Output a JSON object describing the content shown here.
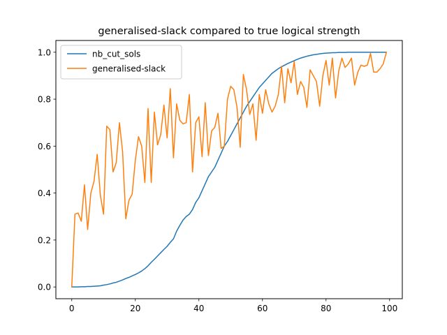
{
  "chart_data": {
    "type": "line",
    "title": "generalised-slack compared to true logical strength",
    "xlabel": "",
    "ylabel": "",
    "xlim": [
      -5,
      104
    ],
    "ylim": [
      -0.05,
      1.05
    ],
    "x_ticks": [
      "0",
      "20",
      "40",
      "60",
      "80",
      "100"
    ],
    "y_ticks": [
      "0.0",
      "0.2",
      "0.4",
      "0.6",
      "0.8",
      "1.0"
    ],
    "grid": false,
    "legend_position": "upper left",
    "x": [
      0,
      1,
      2,
      3,
      4,
      5,
      6,
      7,
      8,
      9,
      10,
      11,
      12,
      13,
      14,
      15,
      16,
      17,
      18,
      19,
      20,
      21,
      22,
      23,
      24,
      25,
      26,
      27,
      28,
      29,
      30,
      31,
      32,
      33,
      34,
      35,
      36,
      37,
      38,
      39,
      40,
      41,
      42,
      43,
      44,
      45,
      46,
      47,
      48,
      49,
      50,
      51,
      52,
      53,
      54,
      55,
      56,
      57,
      58,
      59,
      60,
      61,
      62,
      63,
      64,
      65,
      66,
      67,
      68,
      69,
      70,
      71,
      72,
      73,
      74,
      75,
      76,
      77,
      78,
      79,
      80,
      81,
      82,
      83,
      84,
      85,
      86,
      87,
      88,
      89,
      90,
      91,
      92,
      93,
      94,
      95,
      96,
      97,
      98,
      99
    ],
    "series": [
      {
        "name": "nb_cut_sols",
        "color": "#1f77b4",
        "values": [
          0.0,
          0.0,
          0.0,
          0.001,
          0.001,
          0.002,
          0.002,
          0.003,
          0.004,
          0.005,
          0.008,
          0.01,
          0.013,
          0.017,
          0.02,
          0.025,
          0.03,
          0.036,
          0.041,
          0.047,
          0.053,
          0.06,
          0.068,
          0.078,
          0.09,
          0.105,
          0.118,
          0.132,
          0.146,
          0.16,
          0.173,
          0.19,
          0.205,
          0.238,
          0.262,
          0.285,
          0.3,
          0.31,
          0.33,
          0.36,
          0.38,
          0.41,
          0.44,
          0.47,
          0.49,
          0.51,
          0.54,
          0.57,
          0.6,
          0.62,
          0.645,
          0.67,
          0.695,
          0.72,
          0.745,
          0.77,
          0.79,
          0.81,
          0.83,
          0.85,
          0.865,
          0.88,
          0.895,
          0.91,
          0.92,
          0.93,
          0.938,
          0.945,
          0.952,
          0.958,
          0.964,
          0.97,
          0.975,
          0.979,
          0.983,
          0.986,
          0.989,
          0.991,
          0.993,
          0.995,
          0.996,
          0.997,
          0.998,
          0.998,
          0.999,
          0.999,
          0.999,
          1.0,
          1.0,
          1.0,
          1.0,
          1.0,
          1.0,
          1.0,
          1.0,
          1.0,
          1.0,
          1.0,
          1.0,
          1.0
        ]
      },
      {
        "name": "generalised-slack",
        "color": "#ff7f0e",
        "values": [
          0.0,
          0.31,
          0.315,
          0.28,
          0.435,
          0.245,
          0.4,
          0.45,
          0.565,
          0.39,
          0.31,
          0.685,
          0.67,
          0.49,
          0.53,
          0.7,
          0.575,
          0.29,
          0.37,
          0.395,
          0.54,
          0.64,
          0.6,
          0.445,
          0.76,
          0.445,
          0.745,
          0.605,
          0.65,
          0.775,
          0.635,
          0.845,
          0.55,
          0.78,
          0.71,
          0.695,
          0.7,
          0.82,
          0.49,
          0.7,
          0.725,
          0.555,
          0.785,
          0.56,
          0.665,
          0.68,
          0.74,
          0.59,
          0.6,
          0.8,
          0.855,
          0.84,
          0.765,
          0.595,
          0.905,
          0.84,
          0.735,
          0.78,
          0.625,
          0.82,
          0.74,
          0.84,
          0.78,
          0.745,
          0.77,
          0.82,
          0.94,
          0.785,
          0.93,
          0.87,
          0.96,
          0.82,
          0.875,
          0.85,
          0.765,
          0.925,
          0.9,
          0.875,
          0.77,
          0.9,
          0.965,
          0.86,
          0.975,
          0.805,
          0.92,
          0.975,
          0.935,
          0.95,
          0.975,
          0.86,
          0.915,
          0.945,
          0.94,
          0.945,
          0.995,
          0.915,
          0.915,
          0.93,
          0.95,
          1.0
        ]
      }
    ]
  }
}
